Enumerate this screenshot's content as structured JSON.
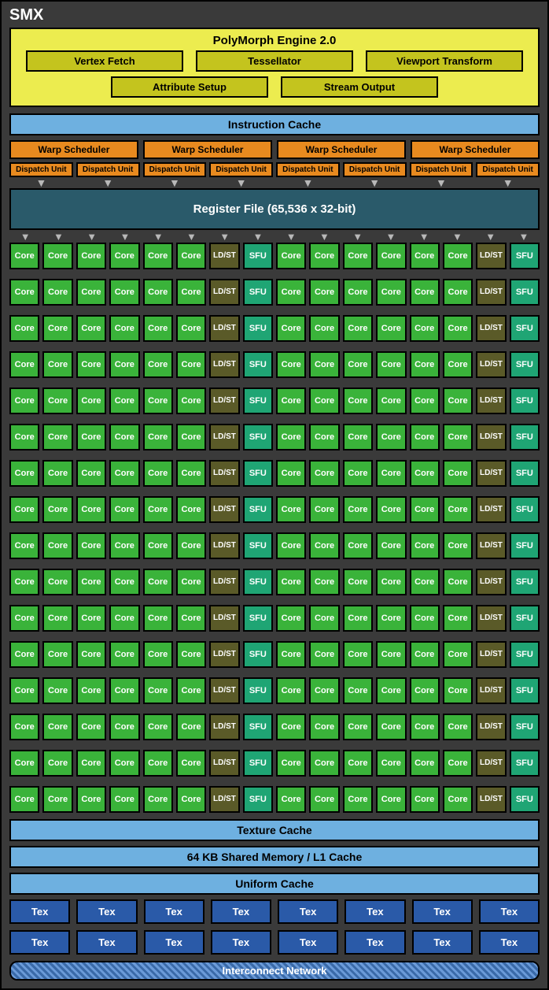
{
  "title": "SMX",
  "polymorph": {
    "title": "PolyMorph Engine 2.0",
    "row1": [
      "Vertex Fetch",
      "Tessellator",
      "Viewport Transform"
    ],
    "row2": [
      "Attribute Setup",
      "Stream Output"
    ]
  },
  "instruction_cache": "Instruction Cache",
  "warp_scheduler_label": "Warp Scheduler",
  "warp_scheduler_count": 4,
  "dispatch_unit_label": "Dispatch Unit",
  "dispatch_unit_count": 8,
  "register_file": "Register File (65,536 x 32-bit)",
  "core_grid": {
    "rows": 16,
    "pattern_half": [
      "Core",
      "Core",
      "Core",
      "Core",
      "Core",
      "Core",
      "LD/ST",
      "SFU"
    ],
    "cell_types": {
      "Core": "core",
      "LD/ST": "ldst",
      "SFU": "sfu"
    }
  },
  "texture_cache": "Texture Cache",
  "shared_memory": "64 KB Shared Memory / L1 Cache",
  "uniform_cache": "Uniform Cache",
  "tex_label": "Tex",
  "tex_rows": 2,
  "tex_cols": 8,
  "interconnect": "Interconnect Network",
  "colors": {
    "background": "#3a3a3a",
    "polymorph_bg": "#ecec4f",
    "polymorph_block": "#c4c41e",
    "blue_bar": "#6eb0e0",
    "orange": "#e88a1f",
    "register": "#2a5a6a",
    "core": "#3ab33a",
    "ldst": "#5a5a28",
    "sfu": "#1fa574",
    "tex": "#2a5aa8",
    "arrow": "#b8b8b8"
  }
}
